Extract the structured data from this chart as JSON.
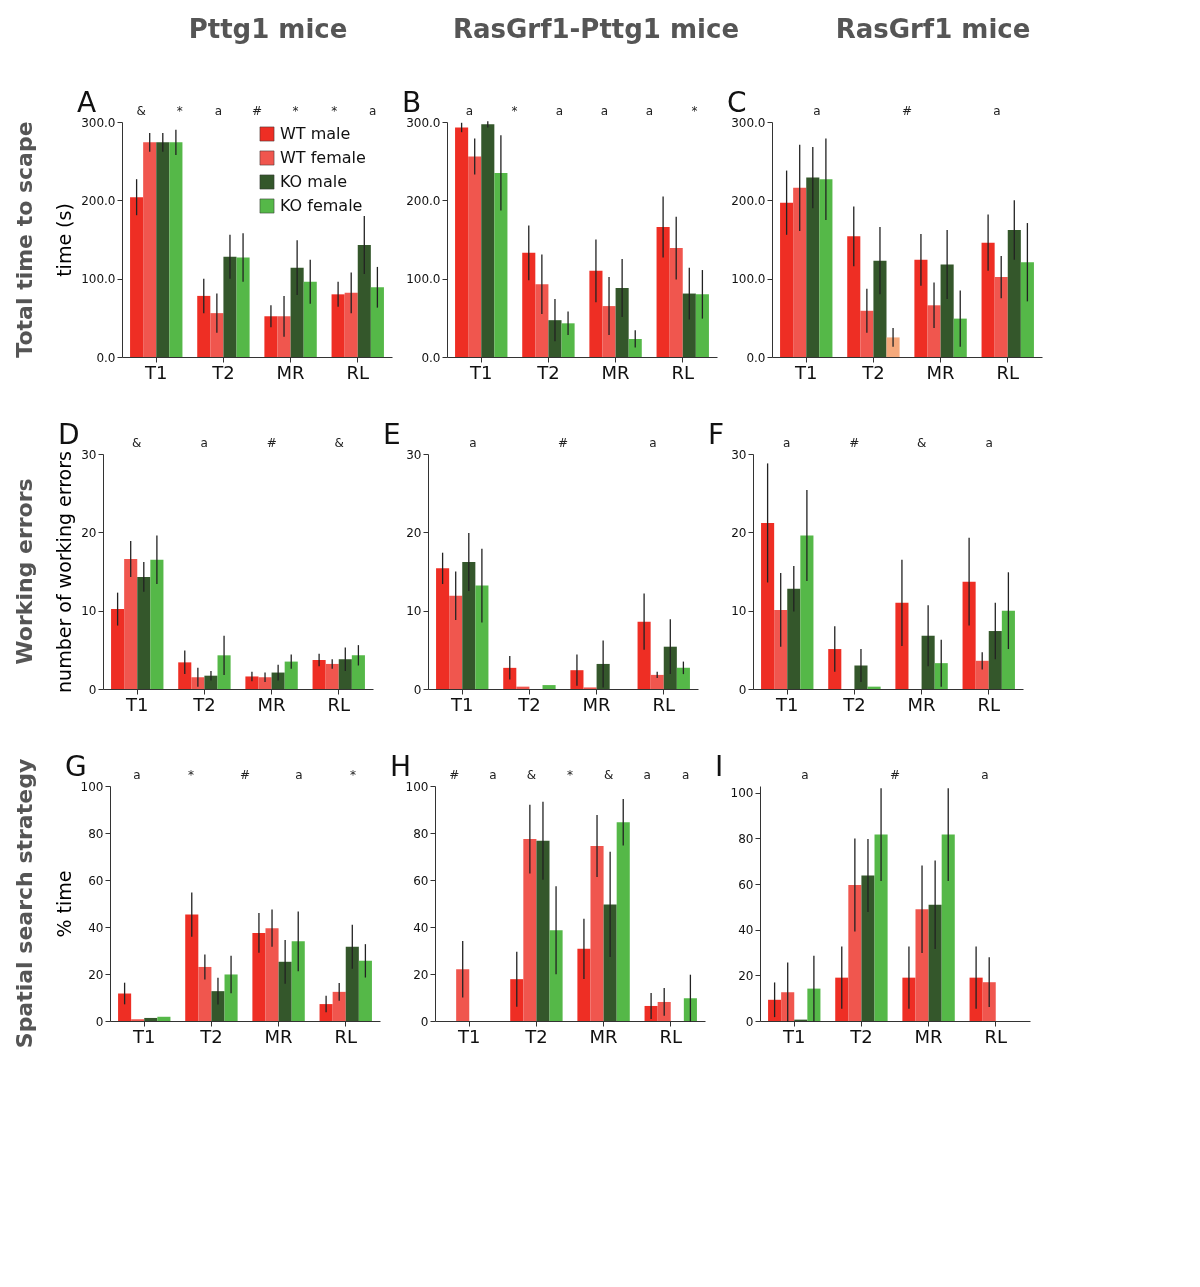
{
  "chart_data": [
    {
      "type": "other",
      "title": "Pttg1 mice"
    },
    {
      "type": "other",
      "title": "RasGrf1-Pttg1 mice"
    },
    {
      "type": "other",
      "title": "RasGrf1 mice"
    },
    {
      "type": "other",
      "title": "Total time to scape"
    },
    {
      "type": "bar",
      "title": "A",
      "ylabel": "time (s)",
      "categories": [
        "T1",
        "T2",
        "MR",
        "RL"
      ],
      "legend": "top right",
      "ylim": [
        0,
        300
      ],
      "yticks": [
        {
          "value": 0,
          "label": "0.0"
        },
        {
          "value": 100,
          "label": "100.0"
        },
        {
          "value": 200,
          "label": "200.0"
        },
        {
          "value": 300,
          "label": "300.0"
        }
      ],
      "series": [
        {
          "name": "WT male",
          "color": "#ee2e24",
          "values": [
            204,
            78,
            52,
            80
          ],
          "errors": [
            23,
            22,
            14,
            16
          ]
        },
        {
          "name": "WT female",
          "color": "#f0564e",
          "values": [
            274,
            56,
            52,
            82
          ],
          "errors": [
            12,
            25,
            26,
            26
          ]
        },
        {
          "name": "KO male",
          "color": "#34572b",
          "values": [
            274,
            128,
            114,
            143
          ],
          "errors": [
            12,
            28,
            35,
            37
          ]
        },
        {
          "name": "KO female",
          "color": "#55b848",
          "values": [
            274,
            127,
            96,
            89
          ],
          "errors": [
            16,
            31,
            28,
            26
          ]
        }
      ],
      "annotations": [
        "&",
        "*",
        "a",
        "#",
        "*",
        "*",
        "a"
      ]
    },
    {
      "type": "bar",
      "title": "B",
      "categories": [
        "T1",
        "T2",
        "MR",
        "RL"
      ],
      "legend": false,
      "ylim": [
        0,
        300
      ],
      "yticks": [
        {
          "value": 0,
          "label": "0.0"
        },
        {
          "value": 100,
          "label": "100.0"
        },
        {
          "value": 200,
          "label": "200.0"
        },
        {
          "value": 300,
          "label": "300.0"
        }
      ],
      "series": [
        {
          "color": "#ee2e24",
          "values": [
            293,
            133,
            110,
            166
          ],
          "errors": [
            6,
            35,
            40,
            39
          ]
        },
        {
          "color": "#f0564e",
          "values": [
            256,
            93,
            65,
            139
          ],
          "errors": [
            23,
            38,
            37,
            40
          ]
        },
        {
          "color": "#34572b",
          "values": [
            297,
            47,
            88,
            81
          ],
          "errors": [
            4,
            27,
            37,
            33
          ]
        },
        {
          "color": "#55b848",
          "values": [
            235,
            43,
            23,
            80
          ],
          "errors": [
            48,
            15,
            11,
            31
          ]
        }
      ],
      "annotations": [
        "a",
        "*",
        "a",
        "a",
        "a",
        "*"
      ]
    },
    {
      "type": "bar",
      "title": "C",
      "categories": [
        "T1",
        "T2",
        "MR",
        "RL"
      ],
      "legend": false,
      "ylim": [
        0,
        300
      ],
      "yticks": [
        {
          "value": 0,
          "label": "0.0"
        },
        {
          "value": 100,
          "label": "100.0"
        },
        {
          "value": 200,
          "label": "200.0"
        },
        {
          "value": 300,
          "label": "300.0"
        }
      ],
      "series": [
        {
          "color": "#ee2e24",
          "values": [
            197,
            154,
            124,
            146
          ],
          "errors": [
            41,
            38,
            33,
            36
          ]
        },
        {
          "color": "#f0564e",
          "values": [
            216,
            59,
            66,
            102
          ],
          "errors": [
            55,
            28,
            29,
            27
          ]
        },
        {
          "color": "#34572b",
          "values": [
            229,
            123,
            118,
            162
          ],
          "errors": [
            39,
            43,
            44,
            38
          ]
        },
        {
          "colors": [
            "#55b848",
            "#f5a97c",
            "#55b848",
            "#55b848"
          ],
          "values": [
            227,
            25,
            49,
            121
          ],
          "errors": [
            52,
            12,
            36,
            50
          ]
        }
      ],
      "annotations": [
        "a",
        "#",
        "a"
      ]
    },
    {
      "type": "other",
      "title": "Working errors"
    },
    {
      "type": "bar",
      "title": "D",
      "ylabel": "number of working errors",
      "categories": [
        "T1",
        "T2",
        "MR",
        "RL"
      ],
      "legend": false,
      "ylim": [
        0,
        30
      ],
      "yticks": [
        0,
        10,
        20,
        30
      ],
      "series": [
        {
          "color": "#ee2e24",
          "values": [
            10.2,
            3.4,
            1.6,
            3.7
          ],
          "errors": [
            2.1,
            1.5,
            0.6,
            0.8
          ]
        },
        {
          "color": "#f0564e",
          "values": [
            16.6,
            1.5,
            1.5,
            3.2
          ],
          "errors": [
            2.3,
            1.2,
            0.6,
            0.6
          ]
        },
        {
          "color": "#34572b",
          "values": [
            14.3,
            1.7,
            2.1,
            3.8
          ],
          "errors": [
            1.9,
            0.6,
            1.0,
            1.5
          ]
        },
        {
          "color": "#55b848",
          "values": [
            16.5,
            4.3,
            3.5,
            4.3
          ],
          "errors": [
            3.1,
            2.5,
            0.9,
            1.3
          ]
        }
      ],
      "annotations": [
        "&",
        "a",
        "#",
        "&"
      ]
    },
    {
      "type": "bar",
      "title": "E",
      "categories": [
        "T1",
        "T2",
        "MR",
        "RL"
      ],
      "legend": false,
      "ylim": [
        0,
        30
      ],
      "yticks": [
        0,
        10,
        20,
        30
      ],
      "series": [
        {
          "color": "#ee2e24",
          "values": [
            15.4,
            2.7,
            2.4,
            8.6
          ],
          "errors": [
            2,
            1.5,
            2,
            3.6
          ]
        },
        {
          "color": "#f0564e",
          "values": [
            11.9,
            0.3,
            0.2,
            1.8
          ],
          "errors": [
            3.1,
            null,
            null,
            0.4
          ]
        },
        {
          "color": "#34572b",
          "values": [
            16.2,
            0,
            3.2,
            5.4
          ],
          "errors": [
            3.7,
            null,
            3,
            3.5
          ]
        },
        {
          "color": "#55b848",
          "values": [
            13.2,
            0.5,
            0,
            2.7
          ],
          "errors": [
            4.7,
            null,
            null,
            0.8
          ]
        }
      ],
      "annotations": [
        "a",
        "#",
        "a"
      ]
    },
    {
      "type": "bar",
      "title": "F",
      "categories": [
        "T1",
        "T2",
        "MR",
        "RL"
      ],
      "legend": false,
      "ylim": [
        0,
        30
      ],
      "yticks": [
        0,
        10,
        20,
        30
      ],
      "series": [
        {
          "color": "#ee2e24",
          "values": [
            21.2,
            5.1,
            11,
            13.7
          ],
          "errors": [
            7.6,
            2.9,
            5.5,
            5.6
          ]
        },
        {
          "color": "#f0564e",
          "values": [
            10.1,
            0,
            0,
            3.6
          ],
          "errors": [
            4.7,
            null,
            null,
            1.1
          ]
        },
        {
          "color": "#34572b",
          "values": [
            12.8,
            3,
            6.8,
            7.4
          ],
          "errors": [
            2.9,
            2.1,
            3.9,
            3.6
          ]
        },
        {
          "color": "#55b848",
          "values": [
            19.6,
            0.3,
            3.3,
            10
          ],
          "errors": [
            5.8,
            null,
            3,
            4.9
          ]
        }
      ],
      "annotations": [
        "a",
        "#",
        "&",
        "a"
      ]
    },
    {
      "type": "other",
      "title": "Spatial search strategy"
    },
    {
      "type": "bar",
      "title": "G",
      "ylabel": "% time",
      "categories": [
        "T1",
        "T2",
        "MR",
        "RL"
      ],
      "legend": false,
      "ylim": [
        0,
        100
      ],
      "yticks": [
        0,
        20,
        40,
        60,
        80,
        100
      ],
      "series": [
        {
          "color": "#ee2e24",
          "values": [
            11.7,
            45.3,
            37.5,
            7.2
          ],
          "errors": [
            4.6,
            9.4,
            8.5,
            3.5
          ]
        },
        {
          "color": "#f0564e",
          "values": [
            0.7,
            23,
            39.5,
            12.4
          ],
          "errors": [
            null,
            5.3,
            7.9,
            3.8
          ]
        },
        {
          "color": "#34572b",
          "values": [
            1.3,
            12.7,
            25.2,
            31.6
          ],
          "errors": [
            null,
            5.7,
            9.3,
            9.4
          ]
        },
        {
          "color": "#55b848",
          "values": [
            1.8,
            19.8,
            33.9,
            25.6
          ],
          "errors": [
            null,
            8,
            12.7,
            7.1
          ]
        }
      ],
      "annotations": [
        "a",
        "*",
        "#",
        "a",
        "*"
      ]
    },
    {
      "type": "bar",
      "title": "H",
      "categories": [
        "T1",
        "T2",
        "MR",
        "RL"
      ],
      "legend": false,
      "ylim": [
        0,
        100
      ],
      "yticks": [
        0,
        20,
        40,
        60,
        80,
        100
      ],
      "series": [
        {
          "color": "#ee2e24",
          "values": [
            0,
            17.8,
            30.7,
            6.4
          ],
          "errors": [
            null,
            11.7,
            12.8,
            5.5
          ]
        },
        {
          "color": "#f0564e",
          "values": [
            22,
            77.4,
            74.5,
            8.1
          ],
          "errors": [
            12,
            14.6,
            13.2,
            5.9
          ]
        },
        {
          "color": "#34572b",
          "values": [
            0,
            76.7,
            49.6,
            0
          ],
          "errors": [
            null,
            16.6,
            22.4,
            null
          ]
        },
        {
          "color": "#55b848",
          "values": [
            0,
            38.6,
            84.6,
            9.7
          ],
          "errors": [
            null,
            18.7,
            9.9,
            10
          ]
        }
      ],
      "annotations": [
        "#",
        "a",
        "&",
        "*",
        "&",
        "a",
        "a"
      ]
    },
    {
      "type": "bar",
      "title": "I",
      "categories": [
        "T1",
        "T2",
        "MR",
        "RL"
      ],
      "legend": false,
      "ylim": [
        0,
        103
      ],
      "yticks": [
        0,
        20,
        40,
        60,
        80,
        100
      ],
      "series": [
        {
          "color": "#ee2e24",
          "values": [
            9.3,
            19,
            19,
            19
          ],
          "errors": [
            7.6,
            13.6,
            13.6,
            13.6
          ]
        },
        {
          "color": "#f0564e",
          "values": [
            12.6,
            59.6,
            49,
            17
          ],
          "errors": [
            13,
            20.4,
            19.2,
            10.9
          ]
        },
        {
          "color": "#34572b",
          "values": [
            0.6,
            63.8,
            51,
            0
          ],
          "errors": [
            null,
            16,
            19.4,
            null
          ]
        },
        {
          "color": "#55b848",
          "values": [
            14.2,
            81.7,
            81.7,
            0
          ],
          "errors": [
            14.4,
            20.3,
            20.3,
            null
          ]
        }
      ],
      "annotations": [
        "a",
        "#",
        "a"
      ]
    }
  ]
}
